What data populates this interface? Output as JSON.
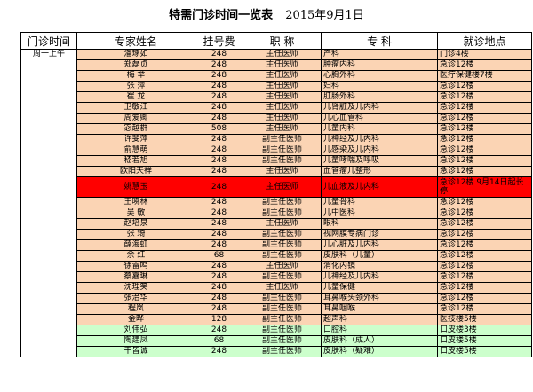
{
  "title": "特需门诊时间一览表",
  "date": "2015年9月1日",
  "headers": [
    "门诊时间",
    "专家姓名",
    "挂号费",
    "职 称",
    "专 科",
    "就诊地点"
  ],
  "session_label": "周一上午",
  "colors": {
    "orange": "#fbd4b4",
    "red": "#ff0000",
    "green": "#ccffcc"
  },
  "rows": [
    {
      "name": "潘琢如",
      "fee": "248",
      "title": "主任医师",
      "specialty": "产科",
      "location": "门诊4楼",
      "color": "orange"
    },
    {
      "name": "郑磊贞",
      "fee": "248",
      "title": "主任医师",
      "specialty": "肿瘤内科",
      "location": "急诊12楼",
      "color": "orange"
    },
    {
      "name": "梅 举",
      "fee": "248",
      "title": "主任医师",
      "specialty": "心胸外科",
      "location": "医疗保健楼7楼",
      "color": "orange"
    },
    {
      "name": "张 萍",
      "fee": "248",
      "title": "主任医师",
      "specialty": "妇科",
      "location": "急诊12楼",
      "color": "orange"
    },
    {
      "name": "崔 龙",
      "fee": "248",
      "title": "主任医师",
      "specialty": "肛肠外科",
      "location": "急诊12楼",
      "color": "orange"
    },
    {
      "name": "卫敏江",
      "fee": "248",
      "title": "主任医师",
      "specialty": "儿肾脏及儿内科",
      "location": "急诊12楼",
      "color": "orange"
    },
    {
      "name": "周爱卿",
      "fee": "248",
      "title": "主任医师",
      "specialty": "儿心血管科",
      "location": "急诊12楼",
      "color": "orange"
    },
    {
      "name": "宓越群",
      "fee": "508",
      "title": "主任医师",
      "specialty": "儿童内科",
      "location": "急诊12楼",
      "color": "orange"
    },
    {
      "name": "许斐萍",
      "fee": "248",
      "title": "副主任医师",
      "specialty": "儿神经及儿内科",
      "location": "急诊12楼",
      "color": "orange"
    },
    {
      "name": "俞慧萌",
      "fee": "248",
      "title": "副主任医师",
      "specialty": "儿感染及儿内科",
      "location": "急诊12楼",
      "color": "orange"
    },
    {
      "name": "嵇若旭",
      "fee": "248",
      "title": "副主任医师",
      "specialty": "儿童哮喘及呼吸",
      "location": "急诊12楼",
      "color": "orange"
    },
    {
      "name": "欧阳天祥",
      "fee": "248",
      "title": "主任医师",
      "specialty": "血管瘤儿整形",
      "location": "急诊12楼",
      "color": "orange"
    },
    {
      "name": "姚慧玉",
      "fee": "248",
      "title": "主任医师",
      "specialty": "儿血液及儿内科",
      "location": "急诊12楼 9月14日起长停",
      "color": "red"
    },
    {
      "name": "王晓林",
      "fee": "248",
      "title": "副主任医师",
      "specialty": "儿童骨科",
      "location": "急诊12楼",
      "color": "orange"
    },
    {
      "name": "吴 敏",
      "fee": "248",
      "title": "副主任医师",
      "specialty": "儿中医科",
      "location": "急诊12楼",
      "color": "orange"
    },
    {
      "name": "赵培泉",
      "fee": "248",
      "title": "主任医师",
      "specialty": "眼科",
      "location": "急诊12楼",
      "color": "orange"
    },
    {
      "name": "张 琦",
      "fee": "248",
      "title": "副主任医师",
      "specialty": "视网膜专病门诊",
      "location": "急诊12楼",
      "color": "orange"
    },
    {
      "name": "薛海虹",
      "fee": "248",
      "title": "副主任医师",
      "specialty": "儿心脏及儿内科",
      "location": "急诊12楼",
      "color": "orange"
    },
    {
      "name": "余 红",
      "fee": "68",
      "title": "副主任医师",
      "specialty": "皮肤科（儿童）",
      "location": "急诊12楼",
      "color": "orange"
    },
    {
      "name": "徐雷鸣",
      "fee": "248",
      "title": "主任医师",
      "specialty": "消化内镜",
      "location": "急诊12楼",
      "color": "orange"
    },
    {
      "name": "蔡嘉琳",
      "fee": "248",
      "title": "副主任医师",
      "specialty": "儿神经及儿内科",
      "location": "急诊12楼",
      "color": "orange"
    },
    {
      "name": "沈理笑",
      "fee": "248",
      "title": "主任医师",
      "specialty": "儿童保健",
      "location": "急诊12楼",
      "color": "orange"
    },
    {
      "name": "张治华",
      "fee": "248",
      "title": "副主任医师",
      "specialty": "耳鼻喉头颈外科",
      "location": "急诊12楼",
      "color": "orange"
    },
    {
      "name": "程岚",
      "fee": "248",
      "title": "副主任医师",
      "specialty": "耳鼻咽喉",
      "location": "急诊12楼",
      "color": "orange"
    },
    {
      "name": "金晔",
      "fee": "128",
      "title": "副主任医师",
      "specialty": "超声科",
      "location": "医技楼5楼",
      "color": "orange"
    },
    {
      "name": "刘伟弘",
      "fee": "248",
      "title": "副主任医师",
      "specialty": "口腔科",
      "location": "口皮楼3楼",
      "color": "green"
    },
    {
      "name": "陶建凤",
      "fee": "68",
      "title": "副主任医师",
      "specialty": "皮肤科（成人）",
      "location": "口皮楼5楼",
      "color": "green"
    },
    {
      "name": "干皆诚",
      "fee": "248",
      "title": "副主任医师",
      "specialty": "皮肤科（疑难）",
      "location": "口皮楼5楼",
      "color": "green"
    }
  ]
}
